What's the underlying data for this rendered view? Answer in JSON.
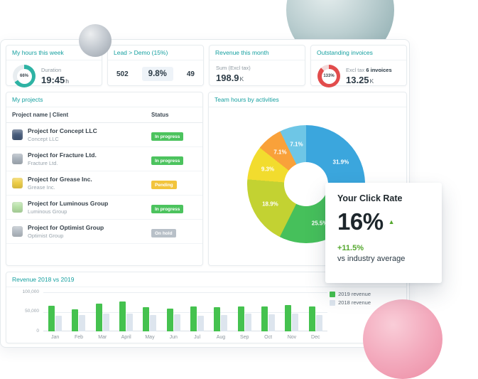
{
  "colors": {
    "teal_title": "#16a0a0",
    "badge_green": "#4cc35e",
    "badge_yellow": "#f2c43c",
    "badge_gray": "#b8c0c8",
    "delta_green": "#55a82f",
    "gauge_red": "#e24c4c",
    "gauge_teal": "#2eb3a4"
  },
  "stat_cards": {
    "hours": {
      "title": "My hours this week",
      "gauge_label": "66%",
      "metric_label": "Duration",
      "value": "19:45",
      "unit": "h"
    },
    "lead": {
      "title": "Lead > Demo (15%)",
      "left_value": "502",
      "center_value": "9.8%",
      "right_value": "49"
    },
    "revenue": {
      "title": "Revenue this month",
      "metric_label": "Sum (Excl tax)",
      "value": "198.9",
      "unit": "K"
    },
    "invoices": {
      "title": "Outstanding invoices",
      "gauge_label": "133%",
      "metric_prefix": "Excl tax",
      "metric_bold": "6 invoices",
      "value": "13.25",
      "unit": "K"
    }
  },
  "projects": {
    "title": "My projects",
    "columns": {
      "name": "Project name | Client",
      "status": "Status"
    },
    "rows": [
      {
        "name": "Project for Concept LLC",
        "client": "Concept LLC",
        "status": "In progress",
        "status_class": "b-progress",
        "icon_color": "#44597a"
      },
      {
        "name": "Project for Fracture Ltd.",
        "client": "Fracture Ltd.",
        "status": "In progress",
        "status_class": "b-progress",
        "icon_color": "#aab3bd"
      },
      {
        "name": "Project for Grease Inc.",
        "client": "Grease Inc.",
        "status": "Pending",
        "status_class": "b-pending",
        "icon_color": "#f0cf43"
      },
      {
        "name": "Project for Luminous Group",
        "client": "Luminous Group",
        "status": "In progress",
        "status_class": "b-progress",
        "icon_color": "#b7e2a6"
      },
      {
        "name": "Project for Optimist Group",
        "client": "Optimist Group",
        "status": "On hold",
        "status_class": "b-hold",
        "icon_color": "#b6bec6"
      }
    ]
  },
  "team": {
    "title": "Team hours by activities"
  },
  "click_rate": {
    "title": "Your Click Rate",
    "value": "16%",
    "delta": "+11.5%",
    "subtitle": "vs industry average"
  },
  "revenue_chart_card": {
    "title": "Revenue 2018 vs 2019"
  },
  "chart_data": [
    {
      "type": "pie",
      "title": "Team hours by activities",
      "labels": [
        "31.9%",
        "25.5%",
        "18.9%",
        "9.3%",
        "7.1%",
        "7.1%"
      ],
      "values": [
        31.9,
        25.5,
        18.9,
        9.3,
        7.1,
        7.1
      ],
      "colors": [
        "#3ba6dd",
        "#46c05b",
        "#c3d232",
        "#f2dc2e",
        "#f9a13a",
        "#6ec6e6"
      ],
      "donut": true,
      "legend_position": "none"
    },
    {
      "type": "bar",
      "title": "Revenue 2018 vs 2019",
      "categories": [
        "Jan",
        "Feb",
        "Mar",
        "April",
        "May",
        "Jun",
        "Jul",
        "Aug",
        "Sep",
        "Oct",
        "Nov",
        "Dec"
      ],
      "series": [
        {
          "name": "2019 revenue",
          "color": "#45c24f",
          "values": [
            65000,
            56000,
            71000,
            76000,
            62000,
            58000,
            64000,
            62000,
            64000,
            64000,
            67000,
            64000
          ]
        },
        {
          "name": "2018 revenue",
          "color": "#dde5ee",
          "values": [
            40000,
            42000,
            45000,
            46000,
            42000,
            44000,
            40000,
            41000,
            45000,
            44000,
            46000,
            42000
          ]
        }
      ],
      "ylim": [
        0,
        100000
      ],
      "yticks": [
        "0",
        "50,000",
        "100,000"
      ],
      "legend_position": "top-right",
      "grid": true
    },
    {
      "type": "pie",
      "title": "My hours this week gauge",
      "labels": [
        "66%",
        ""
      ],
      "values": [
        66,
        34
      ],
      "colors": [
        "#2eb3a4",
        "#e8edf0"
      ],
      "donut": true
    },
    {
      "type": "pie",
      "title": "Outstanding invoices gauge",
      "labels": [
        "133%",
        ""
      ],
      "values": [
        88,
        12
      ],
      "colors": [
        "#e24c4c",
        "#f3d9d9"
      ],
      "donut": true
    }
  ]
}
